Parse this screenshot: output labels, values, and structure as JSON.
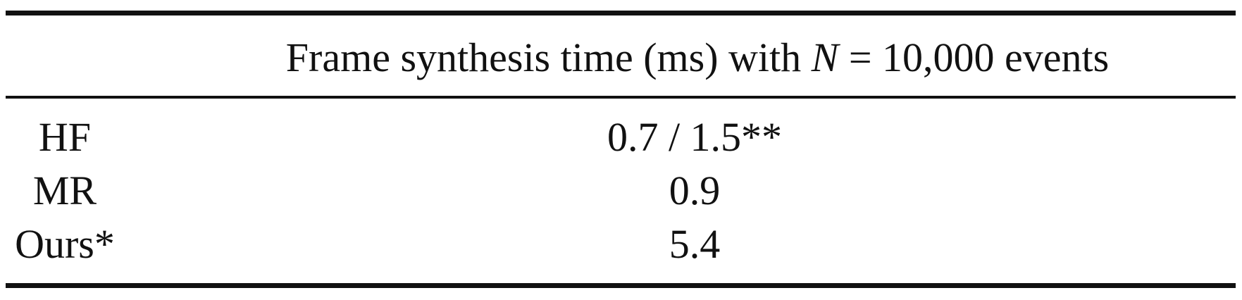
{
  "table": {
    "header": {
      "prefix": "Frame synthesis time (ms) with ",
      "variable": "N",
      "suffix": " = 10,000 events"
    },
    "rows": [
      {
        "method": "HF",
        "value": "0.7 / 1.5**"
      },
      {
        "method": "MR",
        "value": "0.9"
      },
      {
        "method": "Ours*",
        "value": "5.4"
      }
    ]
  }
}
